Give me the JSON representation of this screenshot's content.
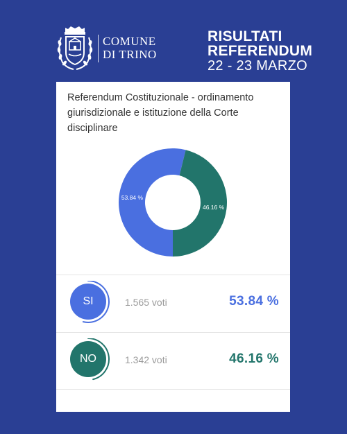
{
  "brand": {
    "line1": "COMUNE",
    "line2": "DI TRINO"
  },
  "headline": {
    "line1": "RISULTATI",
    "line2": "REFERENDUM",
    "line3": "22 - 23 MARZO"
  },
  "card": {
    "title": "Referendum Costituzionale - ordinamento giurisdizionale e istituzione della Corte disciplinare"
  },
  "chart_data": {
    "type": "pie",
    "categories": [
      "SI",
      "NO"
    ],
    "values": [
      53.84,
      46.16
    ],
    "labels": [
      "53.84 %",
      "46.16 %"
    ],
    "colors": [
      "#4a6fe0",
      "#22756b"
    ]
  },
  "results": [
    {
      "label": "SI",
      "votes": "1.565 voti",
      "percent": "53.84 %",
      "share": 0.5384,
      "color": "#4a6fe0"
    },
    {
      "label": "NO",
      "votes": "1.342 voti",
      "percent": "46.16 %",
      "share": 0.4616,
      "color": "#22756b"
    }
  ],
  "colors": {
    "background": "#2a3f94",
    "card": "#ffffff"
  },
  "icons": {
    "crest": "coat-of-arms-icon"
  }
}
